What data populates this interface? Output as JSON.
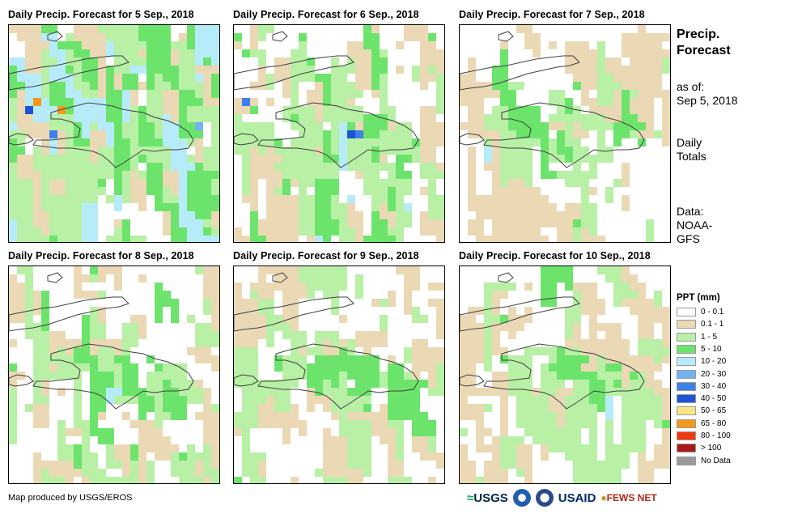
{
  "panels": [
    {
      "title": "Daily Precip. Forecast for 5 Sep., 2018"
    },
    {
      "title": "Daily Precip. Forecast for 6 Sep., 2018"
    },
    {
      "title": "Daily Precip. Forecast for 7 Sep., 2018"
    },
    {
      "title": "Daily Precip. Forecast for 8 Sep., 2018"
    },
    {
      "title": "Daily Precip. Forecast for 9 Sep., 2018"
    },
    {
      "title": "Daily Precip. Forecast for 10 Sep., 2018"
    }
  ],
  "side": {
    "title_line1": "Precip.",
    "title_line2": "Forecast",
    "asof_line1": "as of:",
    "asof_line2": "Sep 5, 2018",
    "totals_line1": "Daily",
    "totals_line2": "Totals",
    "data_line1": "Data:",
    "data_line2": "NOAA-",
    "data_line3": "GFS"
  },
  "legend": {
    "title": "PPT (mm)",
    "items": [
      {
        "label": "0 - 0.1",
        "color": "#ffffff"
      },
      {
        "label": "0.1 - 1",
        "color": "#ead9b4"
      },
      {
        "label": "1 - 5",
        "color": "#b8f0a6"
      },
      {
        "label": "5 - 10",
        "color": "#6ce46c"
      },
      {
        "label": "10 - 20",
        "color": "#b6ecfa"
      },
      {
        "label": "20 - 30",
        "color": "#72b2f2"
      },
      {
        "label": "30 - 40",
        "color": "#3e80ea"
      },
      {
        "label": "40 - 50",
        "color": "#1d54d6"
      },
      {
        "label": "50 - 65",
        "color": "#fae680"
      },
      {
        "label": "65 - 80",
        "color": "#f49a1a"
      },
      {
        "label": "80 - 100",
        "color": "#f03a0e"
      },
      {
        "label": "> 100",
        "color": "#a81a1a"
      },
      {
        "label": "No Data",
        "color": "#9a9a9a"
      }
    ]
  },
  "footer": {
    "credit": "Map produced by USGS/EROS",
    "logo_usgs": "USGS",
    "logo_usaid": "USAID",
    "logo_fews": "FEWS NET"
  },
  "colors": {
    "coast": "#404040",
    "panel_border": "#000000"
  }
}
